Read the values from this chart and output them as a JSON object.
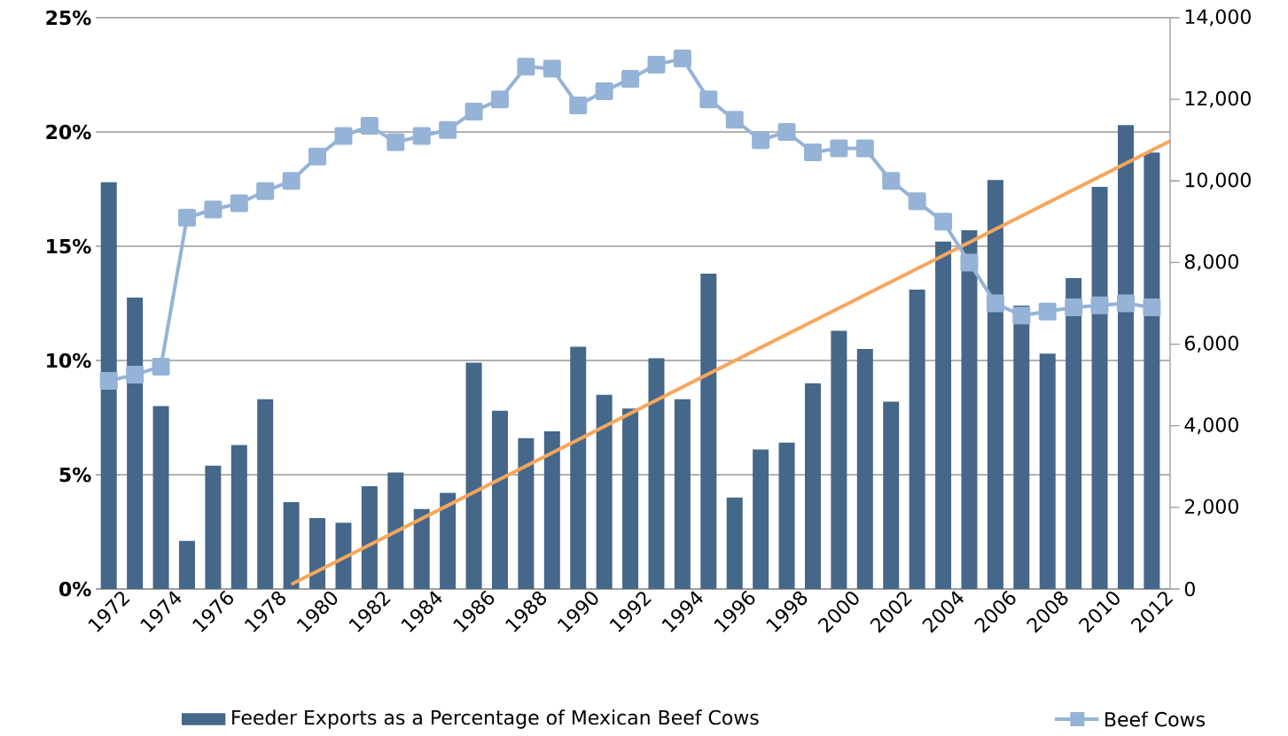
{
  "chart_data": {
    "type": "bar",
    "x": [
      1972,
      1973,
      1974,
      1975,
      1976,
      1977,
      1978,
      1979,
      1980,
      1981,
      1982,
      1983,
      1984,
      1985,
      1986,
      1987,
      1988,
      1989,
      1990,
      1991,
      1992,
      1993,
      1994,
      1995,
      1996,
      1997,
      1998,
      1999,
      2000,
      2001,
      2002,
      2003,
      2004,
      2005,
      2006,
      2007,
      2008,
      2009,
      2010,
      2011,
      2012
    ],
    "series": [
      {
        "name": "Feeder Exports as a Percentage of Mexican Beef Cows",
        "type": "bar",
        "color": "#44678a",
        "values": [
          17.8,
          12.75,
          8.0,
          2.1,
          5.4,
          6.3,
          8.3,
          3.8,
          3.1,
          2.9,
          4.5,
          5.1,
          3.5,
          4.2,
          9.9,
          7.8,
          6.6,
          6.9,
          10.6,
          8.5,
          7.9,
          10.1,
          8.3,
          13.8,
          4.0,
          6.1,
          6.4,
          9.0,
          11.3,
          10.5,
          8.2,
          13.1,
          15.2,
          15.7,
          17.9,
          12.4,
          10.3,
          13.6,
          17.6,
          20.3,
          19.1
        ]
      },
      {
        "name": "Beef Cows",
        "type": "line",
        "axis": "y2",
        "marker": "square",
        "color": "#95b3d7",
        "values": [
          5100,
          5250,
          5450,
          9100,
          9300,
          9450,
          9750,
          10000,
          10600,
          11100,
          11350,
          10950,
          11100,
          11250,
          11700,
          12000,
          12800,
          12750,
          11850,
          12200,
          12500,
          12850,
          13000,
          12000,
          11500,
          11000,
          11200,
          10700,
          10800,
          10800,
          10000,
          9500,
          9000,
          8000,
          7000,
          6700,
          6800,
          6900,
          6950,
          7000,
          6900
        ]
      },
      {
        "type": "line",
        "color": "#f7a65b",
        "x": [
          1979,
          2012.7
        ],
        "values": [
          0.2,
          19.6
        ]
      }
    ],
    "xlim": [
      1971.5,
      2012.7
    ],
    "xticks": [
      1972,
      1974,
      1976,
      1978,
      1980,
      1982,
      1984,
      1986,
      1988,
      1990,
      1992,
      1994,
      1996,
      1998,
      2000,
      2002,
      2004,
      2006,
      2008,
      2010,
      2012
    ],
    "ylim": [
      0,
      25
    ],
    "yticks": [
      {
        "value": 0,
        "label": "0%"
      },
      {
        "value": 5,
        "label": "5%"
      },
      {
        "value": 10,
        "label": "10%"
      },
      {
        "value": 15,
        "label": "15%"
      },
      {
        "value": 20,
        "label": "20%"
      },
      {
        "value": 25,
        "label": "25%"
      }
    ],
    "y2lim": [
      0,
      14000
    ],
    "y2ticks": [
      0,
      {
        "value": 2000,
        "label": "2,000"
      },
      {
        "value": 4000,
        "label": "4,000"
      },
      {
        "value": 6000,
        "label": "6,000"
      },
      {
        "value": 8000,
        "label": "8,000"
      },
      {
        "value": 10000,
        "label": "10,000"
      },
      {
        "value": 12000,
        "label": "12,000"
      },
      {
        "value": 14000,
        "label": "14,000"
      }
    ],
    "grid": "y",
    "legend": "bottom"
  }
}
